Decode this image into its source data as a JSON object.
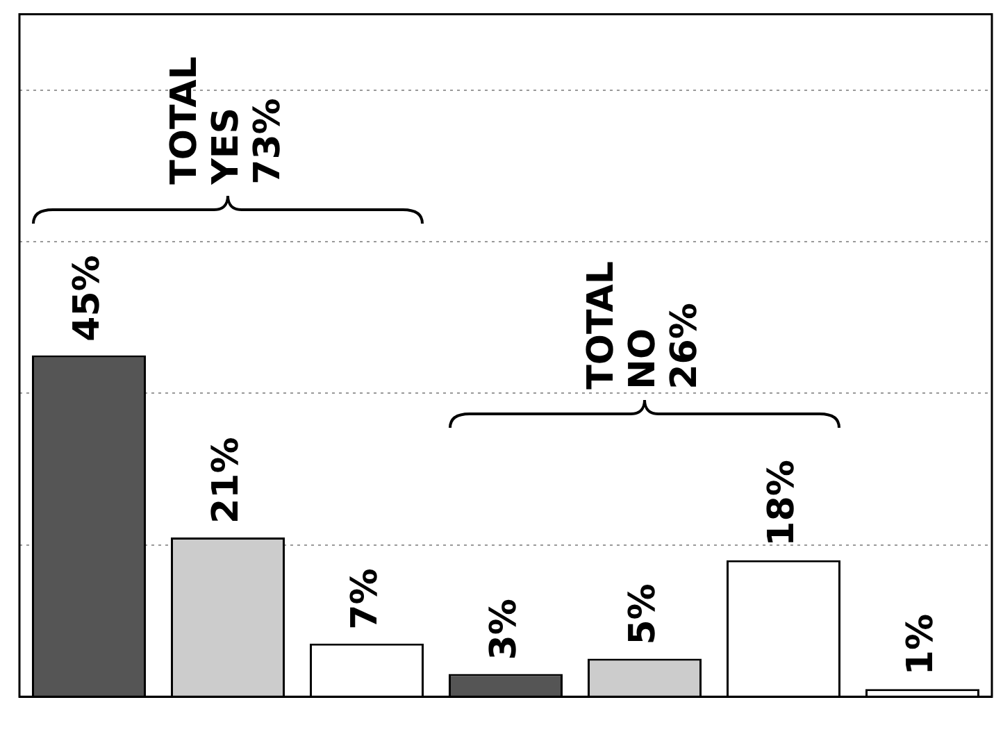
{
  "chart_data": {
    "type": "bar",
    "categories": [
      null,
      null,
      null,
      null,
      null,
      null,
      null
    ],
    "values": [
      45,
      21,
      7,
      3,
      5,
      18,
      1
    ],
    "colors": [
      "#555555",
      "#cccccc",
      "#ffffff",
      "#555555",
      "#cccccc",
      "#ffffff",
      "#ffffff"
    ],
    "ylim": [
      0,
      90
    ],
    "yticks": [
      {
        "value": 20,
        "label": null
      },
      {
        "value": 40,
        "label": null
      },
      {
        "value": 60,
        "label": null
      },
      {
        "value": 80,
        "label": null
      }
    ],
    "grid": "y",
    "legend": false,
    "value_labels": [
      "45%",
      "21%",
      "7%",
      "3%",
      "5%",
      "18%",
      "1%"
    ],
    "annotations": [
      "TOTAL\nYES\n73%",
      "TOTAL\nNO\n26%"
    ]
  }
}
